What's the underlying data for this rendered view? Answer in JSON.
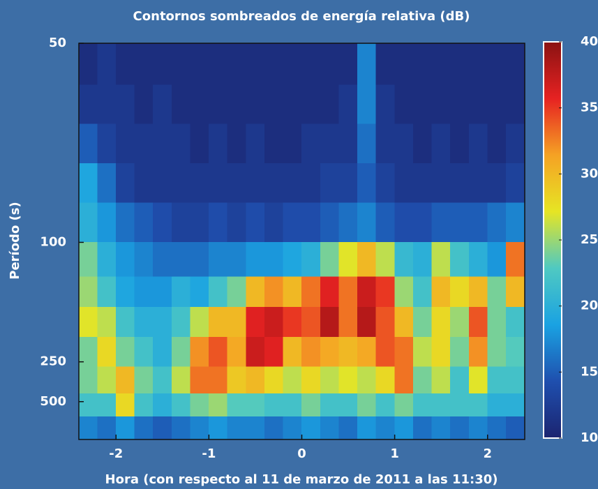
{
  "chart_data": {
    "type": "heatmap",
    "title": "Contornos sombreados de energía relativa (dB)",
    "xlabel": "Hora (con respecto al 11 de marzo de 2011 a las 11:30)",
    "ylabel": "Período (s)",
    "x": [
      -2.3,
      -2.1,
      -1.9,
      -1.7,
      -1.5,
      -1.3,
      -1.1,
      -0.9,
      -0.7,
      -0.5,
      -0.3,
      -0.1,
      0.1,
      0.3,
      0.5,
      0.7,
      0.9,
      1.1,
      1.3,
      1.5,
      1.7,
      1.9,
      2.1,
      2.3
    ],
    "y": [
      53,
      59,
      67,
      77,
      91,
      111,
      133,
      167,
      222,
      333,
      556,
      1429
    ],
    "z": [
      [
        11,
        12,
        11,
        11,
        11,
        11,
        11,
        11,
        11,
        11,
        11,
        11,
        11,
        11,
        11,
        17,
        11,
        11,
        11,
        11,
        11,
        11,
        11,
        11
      ],
      [
        12,
        12,
        12,
        11,
        12,
        11,
        11,
        11,
        11,
        11,
        11,
        11,
        11,
        11,
        12,
        17,
        12,
        11,
        11,
        11,
        11,
        11,
        11,
        11
      ],
      [
        15,
        13,
        12,
        12,
        12,
        12,
        11,
        12,
        11,
        12,
        11,
        11,
        12,
        12,
        12,
        16,
        12,
        12,
        11,
        12,
        11,
        12,
        11,
        12
      ],
      [
        19,
        16,
        13,
        12,
        12,
        12,
        12,
        12,
        12,
        12,
        12,
        12,
        12,
        13,
        13,
        15,
        13,
        12,
        12,
        12,
        12,
        12,
        12,
        13
      ],
      [
        20,
        18,
        16,
        15,
        14,
        13,
        13,
        14,
        13,
        14,
        13,
        14,
        14,
        15,
        16,
        17,
        15,
        14,
        14,
        15,
        15,
        15,
        16,
        17
      ],
      [
        24,
        20,
        18,
        17,
        16,
        16,
        16,
        17,
        17,
        18,
        18,
        19,
        20,
        24,
        27,
        30,
        26,
        21,
        20,
        26,
        22,
        20,
        18,
        33
      ],
      [
        25,
        22,
        19,
        18,
        18,
        20,
        19,
        22,
        24,
        30,
        32,
        30,
        33,
        36,
        33,
        37,
        35,
        25,
        22,
        30,
        28,
        30,
        24,
        30
      ],
      [
        27,
        26,
        22,
        20,
        20,
        22,
        26,
        30,
        30,
        36,
        37,
        35,
        34,
        38,
        33,
        38,
        34,
        30,
        24,
        28,
        25,
        34,
        24,
        22
      ],
      [
        24,
        28,
        24,
        22,
        20,
        24,
        32,
        34,
        31,
        37,
        36,
        30,
        32,
        31,
        30,
        31,
        34,
        33,
        26,
        28,
        24,
        32,
        24,
        23
      ],
      [
        24,
        26,
        30,
        24,
        22,
        26,
        33,
        33,
        29,
        30,
        28,
        26,
        28,
        26,
        27,
        26,
        28,
        33,
        24,
        26,
        22,
        27,
        22,
        22
      ],
      [
        22,
        22,
        28,
        22,
        20,
        22,
        24,
        25,
        23,
        23,
        22,
        22,
        24,
        22,
        22,
        24,
        22,
        24,
        22,
        22,
        22,
        22,
        20,
        20
      ],
      [
        17,
        16,
        18,
        16,
        15,
        16,
        17,
        18,
        17,
        17,
        16,
        17,
        18,
        17,
        16,
        18,
        17,
        18,
        16,
        17,
        16,
        17,
        16,
        15
      ]
    ],
    "xlim": [
      -2.4,
      2.4
    ],
    "xticks": [
      -2,
      -1,
      0,
      1,
      2
    ],
    "ylim": [
      50,
      10000
    ],
    "yticks": [
      50,
      100,
      250,
      500
    ],
    "yscale": "reciprocal",
    "zlim": [
      10,
      40
    ],
    "zticks": [
      10,
      15,
      20,
      25,
      30,
      35,
      40
    ],
    "colormap": [
      "#1b2470",
      "#1f4fae",
      "#1aa2e2",
      "#4fc9c2",
      "#e6e524",
      "#f5a224",
      "#e62222",
      "#8a1212"
    ]
  }
}
